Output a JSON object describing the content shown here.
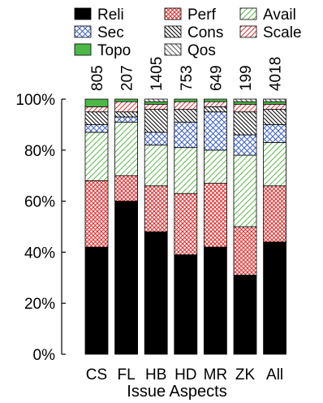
{
  "chart_data": {
    "type": "bar",
    "stacked": true,
    "normalized": true,
    "title": "",
    "xlabel": "Issue Aspects",
    "ylabel": "",
    "ylim": [
      0,
      100
    ],
    "yticks": [
      "0%",
      "20%",
      "40%",
      "60%",
      "80%",
      "100%"
    ],
    "categories": [
      "CS",
      "FL",
      "HB",
      "HD",
      "MR",
      "ZK",
      "All"
    ],
    "counts": [
      "805",
      "207",
      "1405",
      "753",
      "649",
      "199",
      "4018"
    ],
    "legend_position": "top",
    "series": [
      {
        "name": "Reli",
        "pattern": "solid-black",
        "values": [
          42,
          60,
          48,
          39,
          42,
          31,
          44
        ]
      },
      {
        "name": "Perf",
        "pattern": "red-crosshatch",
        "values": [
          26,
          10,
          18,
          24,
          25,
          19,
          22
        ]
      },
      {
        "name": "Avail",
        "pattern": "green-diagonal",
        "values": [
          19,
          21,
          16,
          18,
          13,
          28,
          17
        ]
      },
      {
        "name": "Sec",
        "pattern": "blue-crosshatch",
        "values": [
          3,
          2,
          5,
          10,
          15,
          8,
          7
        ]
      },
      {
        "name": "Cons",
        "pattern": "black-backslash",
        "values": [
          5,
          2,
          9,
          5,
          2,
          9,
          6
        ]
      },
      {
        "name": "Scale",
        "pattern": "red-diagonal",
        "values": [
          2,
          4,
          2,
          3,
          2,
          3,
          2
        ]
      },
      {
        "name": "Topo",
        "pattern": "solid-green",
        "values": [
          3,
          1,
          1,
          1,
          1,
          1,
          1
        ]
      },
      {
        "name": "Qos",
        "pattern": "gray-backslash",
        "values": [
          0,
          0,
          1,
          0,
          0,
          1,
          1
        ]
      }
    ]
  }
}
